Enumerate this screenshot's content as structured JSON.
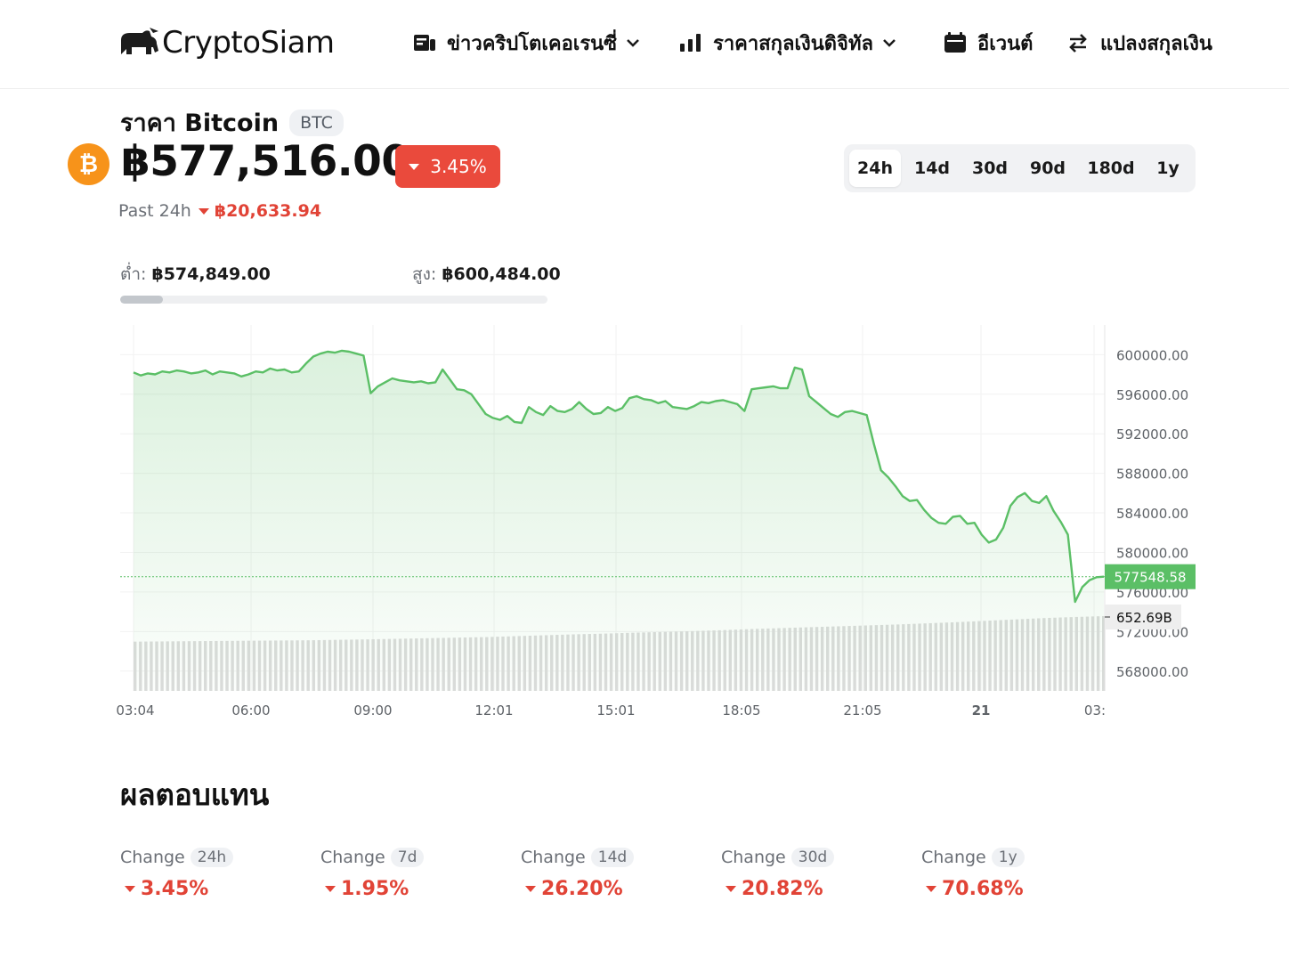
{
  "header": {
    "logo_text": "CryptoSiam",
    "nav": [
      {
        "label": "ข่าวคริปโตเคอเรนซี่",
        "icon": "news-icon",
        "has_dropdown": true
      },
      {
        "label": "ราคาสกุลเงินดิจิทัล",
        "icon": "bar-chart-icon",
        "has_dropdown": true
      },
      {
        "label": "อีเวนต์",
        "icon": "calendar-icon",
        "has_dropdown": false
      },
      {
        "label": "แปลงสกุลเงิน",
        "icon": "swap-arrows-icon",
        "has_dropdown": false
      }
    ]
  },
  "coin": {
    "title": "ราคา Bitcoin",
    "ticker": "BTC",
    "icon_symbol": "₿",
    "icon_color": "#f7931a",
    "price": "฿577,516.00",
    "change_badge": "3.45%",
    "past_label": "Past 24h",
    "past_change": "฿20,633.94",
    "low_label": "ต่ำ:",
    "low_value": "฿574,849.00",
    "high_label": "สูง:",
    "high_value": "฿600,484.00",
    "range_fill_fraction": 0.1
  },
  "periods": [
    {
      "label": "24h",
      "active": true
    },
    {
      "label": "14d",
      "active": false
    },
    {
      "label": "30d",
      "active": false
    },
    {
      "label": "90d",
      "active": false
    },
    {
      "label": "180d",
      "active": false
    },
    {
      "label": "1y",
      "active": false
    }
  ],
  "colors": {
    "up_green": "#5bbf66",
    "down_red": "#e14336",
    "badge_red": "#ea4a3c"
  },
  "chart_data": {
    "type": "area",
    "series": [
      {
        "values": [
          598200,
          597900,
          598100,
          598000,
          598300,
          598200,
          598400,
          598300,
          598100,
          598200,
          598400,
          598000,
          598300,
          598200,
          598100,
          597800,
          598000,
          598300,
          598200,
          598600,
          598400,
          598500,
          598200,
          598300,
          599100,
          599800,
          600100,
          600300,
          600200,
          600400,
          600300,
          600100,
          599900,
          596100,
          596800,
          597200,
          597600,
          597400,
          597300,
          597200,
          597300,
          597100,
          597200,
          598500,
          597500,
          596500,
          596400,
          596000,
          595000,
          594000,
          593600,
          593400,
          593800,
          593200,
          593100,
          594700,
          594200,
          593900,
          594800,
          594300,
          594200,
          594500,
          595200,
          594500,
          594000,
          594100,
          594700,
          594300,
          594600,
          595600,
          595800,
          595500,
          595400,
          595100,
          595300,
          594700,
          594600,
          594500,
          594800,
          595200,
          595100,
          595300,
          595400,
          595200,
          595000,
          594300,
          596500,
          596600,
          596700,
          596800,
          596600,
          596600,
          598700,
          598500,
          595800,
          595200,
          594600,
          594000,
          593700,
          594200,
          594300,
          594100,
          593900,
          591000,
          588300,
          587600,
          586700,
          585700,
          585200,
          585300,
          584300,
          583500,
          583000,
          582900,
          583600,
          583700,
          582900,
          583000,
          581800,
          581000,
          581300,
          582500,
          584700,
          585600,
          586000,
          585200,
          585000,
          585700,
          584200,
          583100,
          581800,
          575000,
          576500,
          577200,
          577500,
          577548.58
        ]
      },
      {
        "values": [
          430,
          432,
          434,
          436,
          438,
          440,
          442,
          446,
          450,
          455,
          460,
          465,
          470,
          478,
          486,
          494,
          500,
          508,
          515,
          522,
          530,
          540,
          548,
          556,
          564,
          572,
          580,
          590,
          600,
          612,
          624,
          636,
          645,
          652.69
        ]
      }
    ],
    "x_ticks": [
      "03:04",
      "06:00",
      "09:00",
      "12:01",
      "15:01",
      "18:05",
      "21:05",
      "21",
      "03:"
    ],
    "y_ticks": [
      "600000.00",
      "596000.00",
      "592000.00",
      "588000.00",
      "584000.00",
      "580000.00",
      "576000.00",
      "572000.00",
      "568000.00"
    ],
    "ylim": [
      566000,
      603000
    ],
    "last_price_label": "577548.58",
    "volume_label": "652.69B",
    "grid": true
  },
  "returns": {
    "title": "ผลตอบแทน",
    "items": [
      {
        "label": "Change",
        "period": "24h",
        "value": "3.45%"
      },
      {
        "label": "Change",
        "period": "7d",
        "value": "1.95%"
      },
      {
        "label": "Change",
        "period": "14d",
        "value": "26.20%"
      },
      {
        "label": "Change",
        "period": "30d",
        "value": "20.82%"
      },
      {
        "label": "Change",
        "period": "1y",
        "value": "70.68%"
      }
    ]
  }
}
